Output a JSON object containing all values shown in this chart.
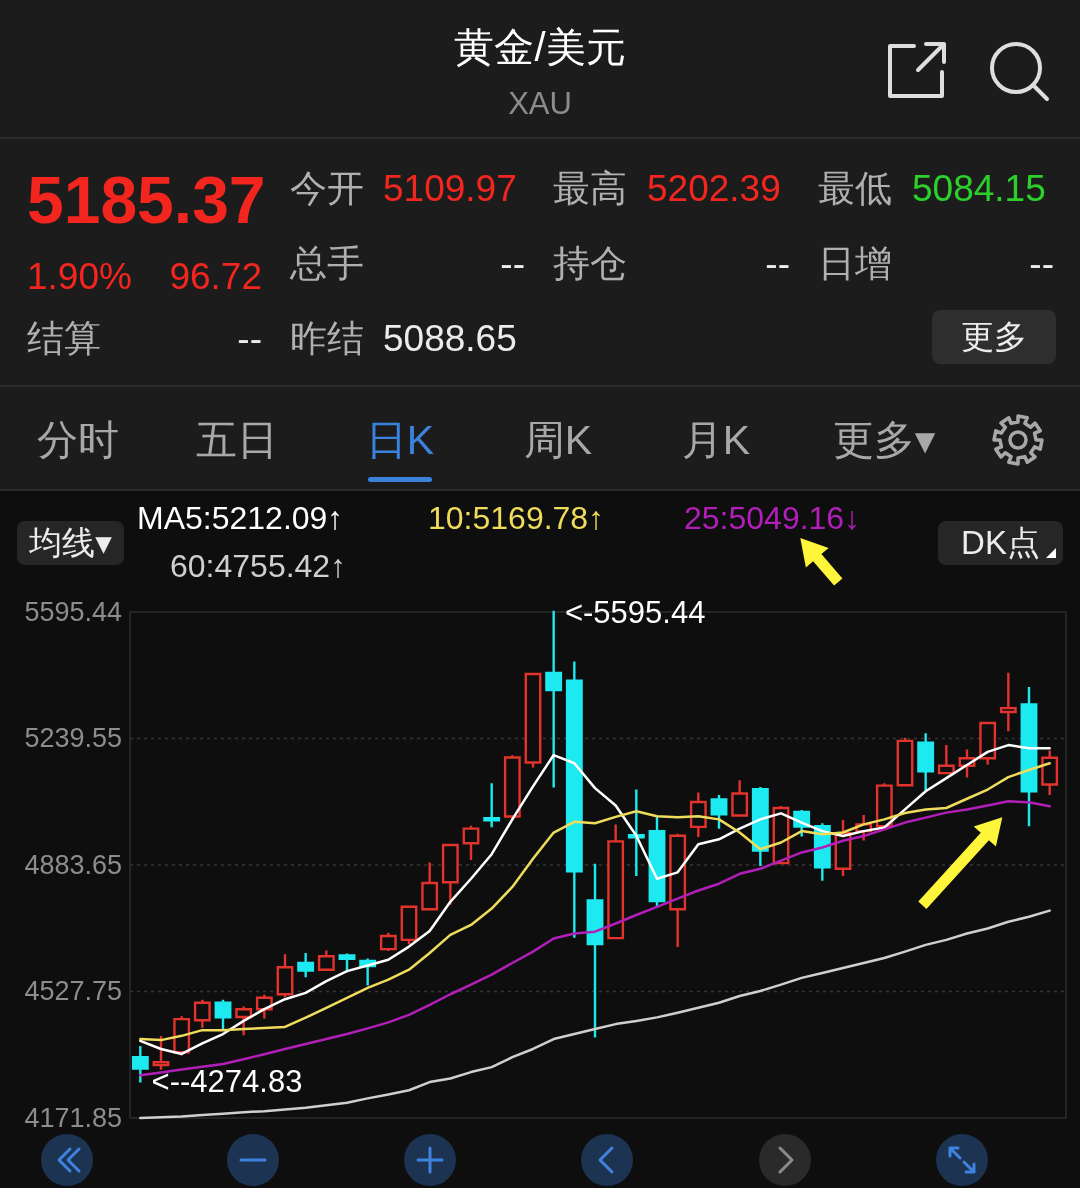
{
  "chart_data": {
    "type": "candlestick",
    "title": "黄金/美元",
    "subtitle": "XAU",
    "categories": [
      null,
      null,
      null,
      null,
      null,
      null,
      null,
      null,
      null,
      null,
      null,
      null,
      null,
      null,
      null,
      null,
      null,
      null,
      null,
      null,
      null,
      null,
      null,
      null,
      null,
      null,
      null,
      null,
      null,
      null,
      null,
      null,
      null,
      null,
      null,
      null,
      null,
      null,
      null,
      null,
      null,
      null,
      null,
      null,
      null
    ],
    "ohlc": [
      [
        4343,
        4371,
        4274.83,
        4311
      ],
      [
        4321,
        4399,
        4311,
        4329
      ],
      [
        4357,
        4455,
        4352,
        4450
      ],
      [
        4447,
        4501,
        4429,
        4496
      ],
      [
        4496,
        4501,
        4422,
        4455
      ],
      [
        4456,
        4482,
        4408,
        4478
      ],
      [
        4478,
        4515,
        4455,
        4510
      ],
      [
        4520,
        4629,
        4515,
        4596
      ],
      [
        4608,
        4633,
        4571,
        4587
      ],
      [
        4589,
        4640,
        4589,
        4627
      ],
      [
        4629,
        4631,
        4585,
        4620
      ],
      [
        4614,
        4617,
        4548,
        4599
      ],
      [
        4647,
        4690,
        4645,
        4684
      ],
      [
        4673,
        4766,
        4664,
        4766
      ],
      [
        4759,
        4887,
        4759,
        4833
      ],
      [
        4835,
        4940,
        4775,
        4940
      ],
      [
        4945,
        4991,
        4901,
        4986
      ],
      [
        5015,
        5110,
        4993,
        5010
      ],
      [
        5020,
        5189,
        5012,
        5186
      ],
      [
        5172,
        5421,
        5161,
        5421
      ],
      [
        5424,
        5595.44,
        5105,
        5376
      ],
      [
        5402,
        5453,
        4682,
        4866
      ],
      [
        4784,
        4884,
        4402,
        4661
      ],
      [
        4678,
        4994,
        4678,
        4950
      ],
      [
        4967,
        5093,
        4856,
        4962
      ],
      [
        4979,
        5016,
        4766,
        4782
      ],
      [
        4759,
        4968,
        4656,
        4966
      ],
      [
        4991,
        5084,
        4966,
        5061
      ],
      [
        5068,
        5077,
        4989,
        5026
      ],
      [
        5023,
        5119,
        5023,
        5085
      ],
      [
        5097,
        5100,
        4884,
        4924
      ],
      [
        4889,
        5046,
        4889,
        5044
      ],
      [
        5033,
        5035,
        4967,
        4992
      ],
      [
        4993,
        4998,
        4843,
        4877
      ],
      [
        4873,
        5007,
        4856,
        4973
      ],
      [
        4979,
        5021,
        4956,
        4998
      ],
      [
        4993,
        5110,
        4993,
        5107
      ],
      [
        5108,
        5238,
        5108,
        5233
      ],
      [
        5228,
        5251,
        5097,
        5147
      ],
      [
        5142,
        5218,
        5142,
        5163
      ],
      [
        5163,
        5205,
        5133,
        5184
      ],
      [
        5184,
        5283,
        5170,
        5283
      ],
      [
        5314,
        5421,
        5263,
        5325
      ],
      [
        5335,
        5381,
        4996,
        5091
      ],
      [
        5109.97,
        5202.39,
        5084.15,
        5185.37
      ]
    ],
    "colors": [
      "#1de9f0",
      "#e2342d",
      "#e2342d",
      "#e2342d",
      "#1de9f0",
      "#e2342d",
      "#e2342d",
      "#e2342d",
      "#1de9f0",
      "#e2342d",
      "#1de9f0",
      "#1de9f0",
      "#e2342d",
      "#e2342d",
      "#e2342d",
      "#e2342d",
      "#e2342d",
      "#1de9f0",
      "#e2342d",
      "#e2342d",
      "#1de9f0",
      "#1de9f0",
      "#1de9f0",
      "#e2342d",
      "#1de9f0",
      "#1de9f0",
      "#e2342d",
      "#e2342d",
      "#1de9f0",
      "#e2342d",
      "#1de9f0",
      "#e2342d",
      "#1de9f0",
      "#1de9f0",
      "#e2342d",
      "#e2342d",
      "#e2342d",
      "#e2342d",
      "#1de9f0",
      "#e2342d",
      "#e2342d",
      "#e2342d",
      "#e2342d",
      "#1de9f0",
      "#e2342d"
    ],
    "series": [
      {
        "name": "MA5:5212.09↑",
        "type": "line",
        "color": "#ffffff",
        "values": [
          4389,
          4366,
          4352,
          4382,
          4408,
          4445,
          4478,
          4506,
          4524,
          4557,
          4585,
          4601,
          4617,
          4654,
          4698,
          4780,
          4845,
          4914,
          5012,
          5105,
          5193,
          5170,
          5100,
          5051,
          4966,
          4845,
          4863,
          4942,
          4956,
          4986,
          5012,
          5029,
          5003,
          4979,
          4965,
          4979,
          4989,
          5040,
          5091,
          5128,
          5165,
          5202,
          5221,
          5212,
          5212.09
        ]
      },
      {
        "name": "10:5169.78↑",
        "type": "line",
        "color": "#f0dc5c",
        "values": [
          4394,
          4391,
          4403,
          4419,
          4419,
          4422,
          4425,
          4428,
          4454,
          4482,
          4510,
          4538,
          4561,
          4589,
          4636,
          4687,
          4715,
          4761,
          4822,
          4901,
          4975,
          5005,
          5001,
          5019,
          5035,
          5021,
          5018,
          5021,
          5012,
          4975,
          4928,
          4947,
          4979,
          4970,
          4975,
          4998,
          5012,
          5030,
          5040,
          5044,
          5070,
          5096,
          5131,
          5151,
          5169.78
        ]
      },
      {
        "name": "25:5049.16↓",
        "type": "line",
        "color": "#b21fb8",
        "values": [
          4292,
          4300,
          4308,
          4316,
          4324,
          4337,
          4351,
          4366,
          4380,
          4394,
          4408,
          4424,
          4441,
          4462,
          4490,
          4520,
          4547,
          4575,
          4608,
          4640,
          4677,
          4691,
          4696,
          4719,
          4743,
          4766,
          4789,
          4812,
          4831,
          4859,
          4873,
          4896,
          4919,
          4933,
          4952,
          4965,
          4984,
          5003,
          5017,
          5031,
          5040,
          5051,
          5063,
          5060,
          5049.16
        ]
      },
      {
        "name": "60:4755.42↑",
        "type": "line",
        "color": "#cfcfcf",
        "values": [
          4172,
          4174,
          4176,
          4180,
          4184,
          4188,
          4191,
          4196,
          4201,
          4208,
          4215,
          4227,
          4238,
          4250,
          4273,
          4283,
          4301,
          4315,
          4343,
          4366,
          4394,
          4408,
          4422,
          4436,
          4445,
          4455,
          4468,
          4482,
          4496,
          4515,
          4529,
          4547,
          4566,
          4580,
          4594,
          4608,
          4622,
          4640,
          4659,
          4673,
          4691,
          4705,
          4724,
          4738,
          4755.42
        ]
      }
    ],
    "ylim": [
      4171.85,
      5595.44
    ],
    "yticks": [
      4171.85,
      4527.75,
      4883.65,
      5239.55,
      5595.44
    ],
    "grid": "y",
    "legend": "top",
    "annotations": [
      "5185.37",
      "1.90%",
      "96.72",
      "结算",
      "--",
      "今开",
      "5109.97",
      "最高",
      "5202.39",
      "最低",
      "5084.15",
      "总手",
      "--",
      "持仓",
      "--",
      "日增",
      "--",
      "昨结",
      "5088.65",
      "更多",
      "分时",
      "五日",
      "日K",
      "周K",
      "月K",
      "更多▾",
      "均线▾",
      "DK点",
      "<-5595.44",
      "<--4274.83"
    ]
  }
}
